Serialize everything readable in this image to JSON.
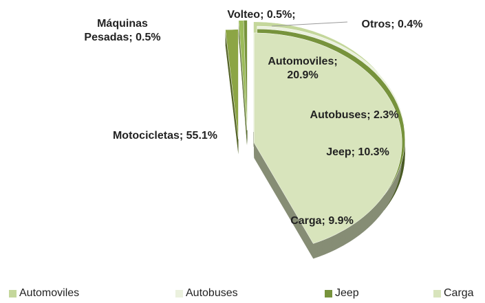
{
  "chart_data": {
    "type": "pie",
    "categories": [
      "Automoviles",
      "Autobuses",
      "Jeep",
      "Carga",
      "Motocicletas",
      "Máquinas Pesadas",
      "Volteo",
      "Otros"
    ],
    "values": [
      20.9,
      2.3,
      10.3,
      9.9,
      55.1,
      0.5,
      0.5,
      0.4
    ],
    "value_labels": [
      "Automoviles; 20.9%",
      "Autobuses; 2.3%",
      "Jeep; 10.3%",
      "Carga; 9.9%",
      "Motocicletas; 55.1%",
      "Máquinas Pesadas; 0.5%",
      "Volteo; 0.5%;",
      "Otros; 0.4%"
    ],
    "colors": [
      "#c4d79b",
      "#ebf1de",
      "#77933c",
      "#d8e4bc",
      "#8ca545",
      "#9bbb59",
      "#77933c",
      "#c4d79b"
    ],
    "legend": "bottom"
  }
}
